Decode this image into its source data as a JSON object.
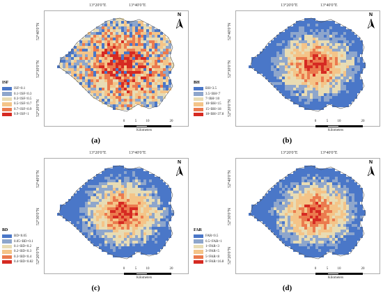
{
  "colors": {
    "blue": "#4a77c8",
    "steel": "#8ea6cc",
    "beige": "#e8dcb4",
    "peach": "#f4c488",
    "orange": "#eb7a4e",
    "red": "#d62a22"
  },
  "panels": [
    {
      "id": "a",
      "caption": "(a)",
      "lon_labels": [
        "13°20'0\"E",
        "13°40'0\"E"
      ],
      "lat_labels": [
        "52°40'0\"N",
        "52°30'0\"N",
        "52°20'0\"N"
      ],
      "north": "N",
      "legend": {
        "title": "ISF",
        "items": [
          {
            "label": "ISF<0.1",
            "color": "#4a77c8"
          },
          {
            "label": "0.1<ISF<0.3",
            "color": "#8ea6cc"
          },
          {
            "label": "0.3<ISF<0.5",
            "color": "#e8dcb4"
          },
          {
            "label": "0.5<ISF<0.7",
            "color": "#f4c488"
          },
          {
            "label": "0.7<ISF<0.9",
            "color": "#eb7a4e"
          },
          {
            "label": "0.9<ISF<1",
            "color": "#d62a22"
          }
        ]
      },
      "scale": {
        "ticks": [
          "0",
          "5",
          "10",
          "20"
        ],
        "units": "Kilometers"
      },
      "pattern": "isf"
    },
    {
      "id": "b",
      "caption": "(b)",
      "lon_labels": [
        "13°20'0\"E",
        "13°40'0\"E"
      ],
      "lat_labels": [
        "52°40'0\"N",
        "52°30'0\"N",
        "52°20'0\"N"
      ],
      "north": "N",
      "legend": {
        "title": "BH",
        "items": [
          {
            "label": "BH<3.5",
            "color": "#4a77c8"
          },
          {
            "label": "3.5<BH<7",
            "color": "#8ea6cc"
          },
          {
            "label": "7<BH<10",
            "color": "#e8dcb4"
          },
          {
            "label": "10<BH<15",
            "color": "#f4c488"
          },
          {
            "label": "15<BH<18",
            "color": "#eb7a4e"
          },
          {
            "label": "18<BH<37.8",
            "color": "#d62a22"
          }
        ]
      },
      "scale": {
        "ticks": [
          "0",
          "5",
          "10",
          "20"
        ],
        "units": "Kilometers"
      },
      "pattern": "center"
    },
    {
      "id": "c",
      "caption": "(c)",
      "lon_labels": [
        "13°20'0\"E",
        "13°40'0\"E"
      ],
      "lat_labels": [
        "52°40'0\"N",
        "52°30'0\"N",
        "52°20'0\"N"
      ],
      "north": "N",
      "legend": {
        "title": "BD",
        "items": [
          {
            "label": "BD<0.05",
            "color": "#4a77c8"
          },
          {
            "label": "0.05<BD<0.1",
            "color": "#8ea6cc"
          },
          {
            "label": "0.1<BD<0.2",
            "color": "#e8dcb4"
          },
          {
            "label": "0.2<BD<0.3",
            "color": "#f4c488"
          },
          {
            "label": "0.3<BD<0.4",
            "color": "#eb7a4e"
          },
          {
            "label": "0.4<BD<0.82",
            "color": "#d62a22"
          }
        ]
      },
      "scale": {
        "ticks": [
          "0",
          "5",
          "10",
          "20"
        ],
        "units": "Kilometers"
      },
      "pattern": "center"
    },
    {
      "id": "d",
      "caption": "(d)",
      "lon_labels": [
        "13°20'0\"E",
        "13°40'0\"E"
      ],
      "lat_labels": [
        "52°40'0\"N",
        "52°30'0\"N",
        "52°20'0\"N"
      ],
      "north": "N",
      "legend": {
        "title": "FAR",
        "items": [
          {
            "label": "FAR<0.5",
            "color": "#4a77c8"
          },
          {
            "label": "0.5<FAR<1",
            "color": "#8ea6cc"
          },
          {
            "label": "1<FAR<3",
            "color": "#e8dcb4"
          },
          {
            "label": "3<FAR<5",
            "color": "#f4c488"
          },
          {
            "label": "5<FAR<8",
            "color": "#eb7a4e"
          },
          {
            "label": "8<FAR<16.8",
            "color": "#d62a22"
          }
        ]
      },
      "scale": {
        "ticks": [
          "0",
          "5",
          "10",
          "20"
        ],
        "units": "Kilometers"
      },
      "pattern": "center"
    }
  ]
}
